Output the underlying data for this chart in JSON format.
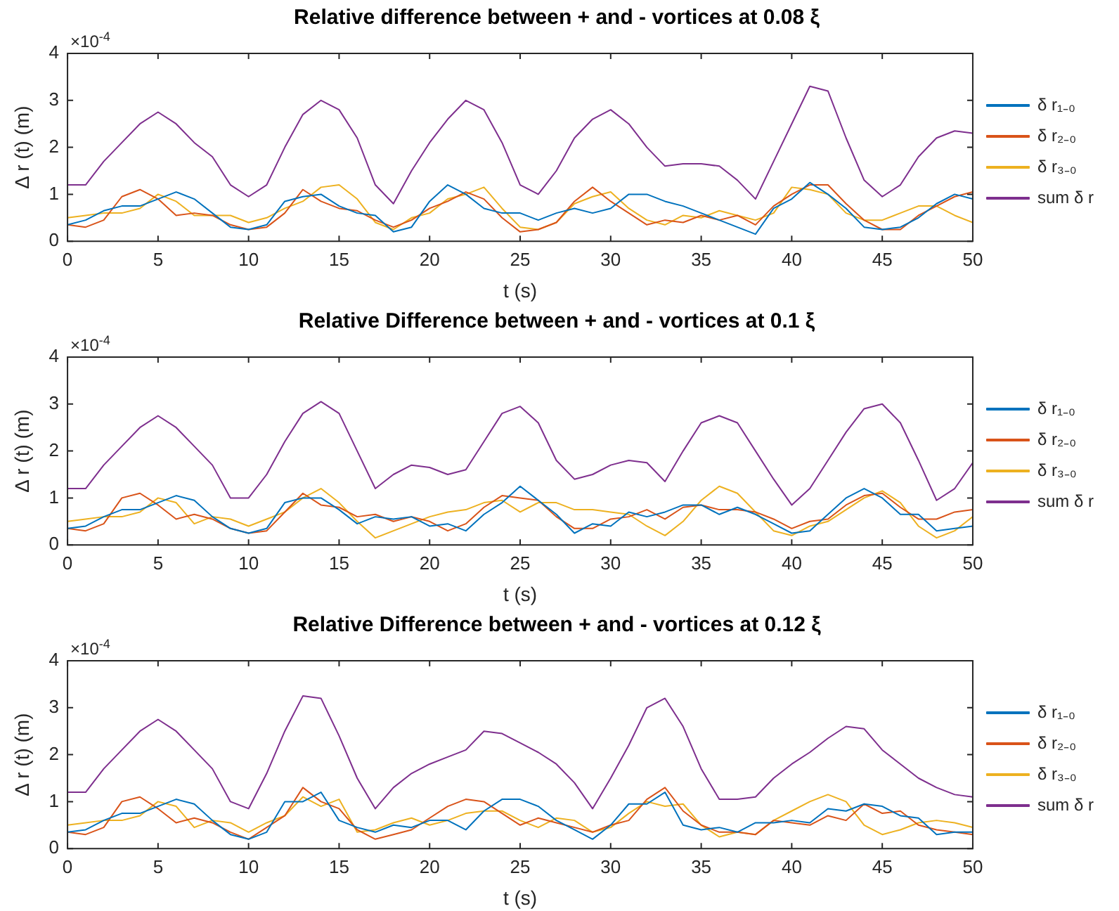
{
  "chart_data": [
    {
      "type": "line",
      "title": "Relative difference between + and - vortices at 0.08 ξ",
      "xlabel": "t (s)",
      "ylabel": "Δ r (t) (m)",
      "annotations": [
        "×10$^{-4}$"
      ],
      "xlim": [
        0,
        50
      ],
      "xticks": [
        0,
        5,
        10,
        15,
        20,
        25,
        30,
        35,
        40,
        45,
        50
      ],
      "ylim": [
        0,
        4
      ],
      "yticks": [
        0,
        1,
        2,
        3,
        4
      ],
      "grid": false,
      "legend": "right",
      "marker": "none",
      "line_style": "solid",
      "x": [
        0,
        1,
        2,
        3,
        4,
        5,
        6,
        7,
        8,
        9,
        10,
        11,
        12,
        13,
        14,
        15,
        16,
        17,
        18,
        19,
        20,
        21,
        22,
        23,
        24,
        25,
        26,
        27,
        28,
        29,
        30,
        31,
        32,
        33,
        34,
        35,
        36,
        37,
        38,
        39,
        40,
        41,
        42,
        43,
        44,
        45,
        46,
        47,
        48,
        49,
        50
      ],
      "series": [
        {
          "name": "δ r₁₋₀",
          "color": "#0072bd",
          "values": [
            0.35,
            0.45,
            0.65,
            0.75,
            0.75,
            0.9,
            1.05,
            0.9,
            0.6,
            0.3,
            0.25,
            0.35,
            0.85,
            0.95,
            1.0,
            0.75,
            0.6,
            0.55,
            0.2,
            0.3,
            0.85,
            1.2,
            1.0,
            0.7,
            0.6,
            0.6,
            0.45,
            0.6,
            0.7,
            0.6,
            0.7,
            1.0,
            1.0,
            0.85,
            0.75,
            0.6,
            0.45,
            0.3,
            0.15,
            0.7,
            0.9,
            1.25,
            1.0,
            0.7,
            0.3,
            0.25,
            0.3,
            0.5,
            0.8,
            1.0,
            0.9
          ]
        },
        {
          "name": "δ r₂₋₀",
          "color": "#d95319",
          "values": [
            0.35,
            0.3,
            0.45,
            0.95,
            1.1,
            0.9,
            0.55,
            0.6,
            0.55,
            0.35,
            0.25,
            0.3,
            0.6,
            1.1,
            0.85,
            0.7,
            0.65,
            0.45,
            0.3,
            0.45,
            0.7,
            0.85,
            1.05,
            0.9,
            0.5,
            0.2,
            0.25,
            0.4,
            0.85,
            1.15,
            0.85,
            0.6,
            0.35,
            0.45,
            0.4,
            0.55,
            0.45,
            0.55,
            0.35,
            0.75,
            1.0,
            1.2,
            1.2,
            0.8,
            0.45,
            0.25,
            0.25,
            0.55,
            0.75,
            0.95,
            1.05
          ]
        },
        {
          "name": "δ r₃₋₀",
          "color": "#edb120",
          "values": [
            0.5,
            0.55,
            0.6,
            0.6,
            0.7,
            1.0,
            0.85,
            0.55,
            0.55,
            0.55,
            0.4,
            0.5,
            0.7,
            0.85,
            1.15,
            1.2,
            0.9,
            0.4,
            0.25,
            0.5,
            0.6,
            0.9,
            1.0,
            1.15,
            0.7,
            0.3,
            0.25,
            0.4,
            0.8,
            0.95,
            1.05,
            0.7,
            0.45,
            0.35,
            0.55,
            0.5,
            0.65,
            0.55,
            0.45,
            0.6,
            1.15,
            1.1,
            1.0,
            0.6,
            0.45,
            0.45,
            0.6,
            0.75,
            0.75,
            0.55,
            0.4
          ]
        },
        {
          "name": "sum δ r",
          "color": "#7e2f8e",
          "values": [
            1.2,
            1.2,
            1.7,
            2.1,
            2.5,
            2.75,
            2.5,
            2.1,
            1.8,
            1.2,
            0.95,
            1.2,
            2.0,
            2.7,
            3.0,
            2.8,
            2.2,
            1.2,
            0.8,
            1.5,
            2.1,
            2.6,
            3.0,
            2.8,
            2.1,
            1.2,
            1.0,
            1.5,
            2.2,
            2.6,
            2.8,
            2.5,
            2.0,
            1.6,
            1.65,
            1.65,
            1.6,
            1.3,
            0.9,
            1.7,
            2.5,
            3.3,
            3.2,
            2.2,
            1.3,
            0.95,
            1.2,
            1.8,
            2.2,
            2.35,
            2.3
          ]
        }
      ]
    },
    {
      "type": "line",
      "title": "Relative Difference between + and - vortices at 0.1 ξ",
      "xlabel": "t (s)",
      "ylabel": "Δ r (t) (m)",
      "annotations": [
        "×10$^{-4}$"
      ],
      "xlim": [
        0,
        50
      ],
      "xticks": [
        0,
        5,
        10,
        15,
        20,
        25,
        30,
        35,
        40,
        45,
        50
      ],
      "ylim": [
        0,
        4
      ],
      "yticks": [
        0,
        1,
        2,
        3,
        4
      ],
      "grid": false,
      "legend": "right",
      "marker": "none",
      "line_style": "solid",
      "x": [
        0,
        1,
        2,
        3,
        4,
        5,
        6,
        7,
        8,
        9,
        10,
        11,
        12,
        13,
        14,
        15,
        16,
        17,
        18,
        19,
        20,
        21,
        22,
        23,
        24,
        25,
        26,
        27,
        28,
        29,
        30,
        31,
        32,
        33,
        34,
        35,
        36,
        37,
        38,
        39,
        40,
        41,
        42,
        43,
        44,
        45,
        46,
        47,
        48,
        49,
        50
      ],
      "series": [
        {
          "name": "δ r₁₋₀",
          "color": "#0072bd",
          "values": [
            0.35,
            0.4,
            0.6,
            0.75,
            0.75,
            0.9,
            1.05,
            0.95,
            0.6,
            0.35,
            0.25,
            0.35,
            0.9,
            1.0,
            1.0,
            0.75,
            0.45,
            0.6,
            0.55,
            0.6,
            0.4,
            0.45,
            0.3,
            0.65,
            0.9,
            1.25,
            0.95,
            0.65,
            0.25,
            0.45,
            0.4,
            0.7,
            0.6,
            0.7,
            0.85,
            0.85,
            0.65,
            0.8,
            0.65,
            0.45,
            0.25,
            0.3,
            0.65,
            1.0,
            1.2,
            1.0,
            0.65,
            0.65,
            0.3,
            0.35,
            0.4
          ]
        },
        {
          "name": "δ r₂₋₀",
          "color": "#d95319",
          "values": [
            0.35,
            0.3,
            0.45,
            1.0,
            1.1,
            0.85,
            0.55,
            0.65,
            0.55,
            0.35,
            0.25,
            0.3,
            0.7,
            1.1,
            0.85,
            0.8,
            0.6,
            0.65,
            0.5,
            0.6,
            0.5,
            0.3,
            0.45,
            0.8,
            1.05,
            1.0,
            0.95,
            0.6,
            0.35,
            0.35,
            0.55,
            0.6,
            0.75,
            0.55,
            0.8,
            0.85,
            0.75,
            0.75,
            0.7,
            0.55,
            0.35,
            0.5,
            0.55,
            0.85,
            1.05,
            1.1,
            0.8,
            0.55,
            0.55,
            0.7,
            0.75
          ]
        },
        {
          "name": "δ r₃₋₀",
          "color": "#edb120",
          "values": [
            0.5,
            0.55,
            0.6,
            0.6,
            0.7,
            1.0,
            0.9,
            0.45,
            0.6,
            0.55,
            0.4,
            0.55,
            0.7,
            1.0,
            1.2,
            0.9,
            0.5,
            0.15,
            0.3,
            0.45,
            0.6,
            0.7,
            0.75,
            0.9,
            0.95,
            0.7,
            0.9,
            0.9,
            0.75,
            0.75,
            0.7,
            0.65,
            0.4,
            0.2,
            0.5,
            0.95,
            1.25,
            1.1,
            0.7,
            0.3,
            0.2,
            0.4,
            0.5,
            0.75,
            1.0,
            1.15,
            0.9,
            0.4,
            0.15,
            0.3,
            0.6
          ]
        },
        {
          "name": "sum δ r",
          "color": "#7e2f8e",
          "values": [
            1.2,
            1.2,
            1.7,
            2.1,
            2.5,
            2.75,
            2.5,
            2.1,
            1.7,
            1.0,
            1.0,
            1.5,
            2.2,
            2.8,
            3.05,
            2.8,
            2.0,
            1.2,
            1.5,
            1.7,
            1.65,
            1.5,
            1.6,
            2.2,
            2.8,
            2.95,
            2.6,
            1.8,
            1.4,
            1.5,
            1.7,
            1.8,
            1.75,
            1.35,
            2.0,
            2.6,
            2.75,
            2.6,
            2.0,
            1.4,
            0.85,
            1.2,
            1.8,
            2.4,
            2.9,
            3.0,
            2.6,
            1.8,
            0.95,
            1.2,
            1.75
          ]
        }
      ]
    },
    {
      "type": "line",
      "title": "Relative Difference between + and - vortices at 0.12 ξ",
      "xlabel": "t (s)",
      "ylabel": "Δ r (t) (m)",
      "annotations": [
        "×10$^{-4}$"
      ],
      "xlim": [
        0,
        50
      ],
      "xticks": [
        0,
        5,
        10,
        15,
        20,
        25,
        30,
        35,
        40,
        45,
        50
      ],
      "ylim": [
        0,
        4
      ],
      "yticks": [
        0,
        1,
        2,
        3,
        4
      ],
      "grid": false,
      "legend": "right",
      "marker": "none",
      "line_style": "solid",
      "x": [
        0,
        1,
        2,
        3,
        4,
        5,
        6,
        7,
        8,
        9,
        10,
        11,
        12,
        13,
        14,
        15,
        16,
        17,
        18,
        19,
        20,
        21,
        22,
        23,
        24,
        25,
        26,
        27,
        28,
        29,
        30,
        31,
        32,
        33,
        34,
        35,
        36,
        37,
        38,
        39,
        40,
        41,
        42,
        43,
        44,
        45,
        46,
        47,
        48,
        49,
        50
      ],
      "series": [
        {
          "name": "δ r₁₋₀",
          "color": "#0072bd",
          "values": [
            0.35,
            0.4,
            0.6,
            0.75,
            0.75,
            0.9,
            1.05,
            0.95,
            0.6,
            0.3,
            0.2,
            0.35,
            1.0,
            1.0,
            1.2,
            0.6,
            0.45,
            0.35,
            0.5,
            0.45,
            0.6,
            0.6,
            0.4,
            0.8,
            1.05,
            1.05,
            0.9,
            0.6,
            0.4,
            0.2,
            0.5,
            0.95,
            0.95,
            1.2,
            0.5,
            0.4,
            0.45,
            0.35,
            0.55,
            0.55,
            0.6,
            0.55,
            0.85,
            0.8,
            0.95,
            0.9,
            0.7,
            0.65,
            0.3,
            0.35,
            0.35
          ]
        },
        {
          "name": "δ r₂₋₀",
          "color": "#d95319",
          "values": [
            0.35,
            0.3,
            0.45,
            1.0,
            1.1,
            0.85,
            0.55,
            0.65,
            0.55,
            0.35,
            0.2,
            0.45,
            0.7,
            1.3,
            1.0,
            0.85,
            0.4,
            0.2,
            0.3,
            0.4,
            0.65,
            0.9,
            1.05,
            1.0,
            0.75,
            0.5,
            0.65,
            0.55,
            0.45,
            0.35,
            0.5,
            0.6,
            1.05,
            1.3,
            0.8,
            0.5,
            0.35,
            0.35,
            0.3,
            0.6,
            0.55,
            0.5,
            0.7,
            0.6,
            0.95,
            0.75,
            0.8,
            0.5,
            0.4,
            0.35,
            0.3
          ]
        },
        {
          "name": "δ r₃₋₀",
          "color": "#edb120",
          "values": [
            0.5,
            0.55,
            0.6,
            0.6,
            0.7,
            1.0,
            0.9,
            0.45,
            0.6,
            0.55,
            0.35,
            0.55,
            0.7,
            1.1,
            0.9,
            1.05,
            0.35,
            0.4,
            0.55,
            0.65,
            0.5,
            0.6,
            0.75,
            0.8,
            0.8,
            0.6,
            0.45,
            0.65,
            0.6,
            0.35,
            0.45,
            0.75,
            1.0,
            0.9,
            0.95,
            0.5,
            0.25,
            0.35,
            0.3,
            0.6,
            0.8,
            1.0,
            1.15,
            1.0,
            0.5,
            0.3,
            0.4,
            0.55,
            0.6,
            0.55,
            0.45
          ]
        },
        {
          "name": "sum δ r",
          "color": "#7e2f8e",
          "values": [
            1.2,
            1.2,
            1.7,
            2.1,
            2.5,
            2.75,
            2.5,
            2.1,
            1.7,
            1.0,
            0.85,
            1.6,
            2.5,
            3.25,
            3.2,
            2.4,
            1.5,
            0.85,
            1.3,
            1.6,
            1.8,
            1.95,
            2.1,
            2.5,
            2.45,
            2.25,
            2.05,
            1.8,
            1.4,
            0.85,
            1.5,
            2.2,
            3.0,
            3.2,
            2.6,
            1.7,
            1.05,
            1.05,
            1.1,
            1.5,
            1.8,
            2.05,
            2.35,
            2.6,
            2.55,
            2.1,
            1.8,
            1.5,
            1.3,
            1.15,
            1.1
          ]
        }
      ]
    }
  ]
}
